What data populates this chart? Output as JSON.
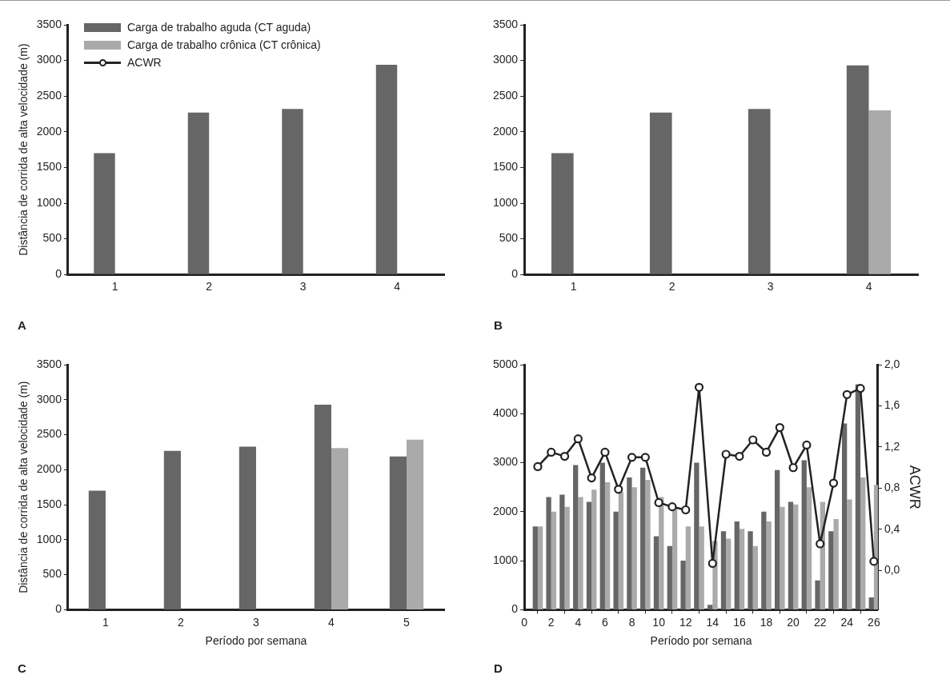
{
  "chart_data": [
    {
      "type": "bar",
      "ylabel": "Distância de corrida de alta velocidade (m)",
      "categories": [
        "1",
        "2",
        "3",
        "4"
      ],
      "ylim": [
        0,
        3500
      ],
      "yticks": [
        0,
        500,
        1000,
        1500,
        2000,
        2500,
        3000,
        3500
      ],
      "grid": false,
      "legend": "top left",
      "annotations": [
        "A"
      ],
      "series": [
        {
          "name": "Carga de trabalho aguda (CT aguda)",
          "color": "#666666",
          "values": [
            1700,
            2270,
            2320,
            2940
          ]
        },
        {
          "name": "Carga de trabalho crônica (CT crônica)",
          "color": "#aaaaaa",
          "values": [
            null,
            null,
            null,
            null
          ]
        },
        {
          "name": "ACWR",
          "type": "line",
          "color": "#222222",
          "marker": "circle",
          "values": [
            null,
            null,
            null,
            null
          ]
        }
      ]
    },
    {
      "type": "bar",
      "categories": [
        "1",
        "2",
        "3",
        "4"
      ],
      "ylim": [
        0,
        3500
      ],
      "yticks": [
        0,
        500,
        1000,
        1500,
        2000,
        2500,
        3000,
        3500
      ],
      "grid": false,
      "annotations": [
        "B"
      ],
      "series": [
        {
          "color": "#666666",
          "values": [
            1700,
            2270,
            2320,
            2930
          ]
        },
        {
          "color": "#aaaaaa",
          "values": [
            null,
            null,
            null,
            2300
          ]
        }
      ]
    },
    {
      "type": "bar",
      "ylabel": "Distância de corrida de alta velocidade (m)",
      "xlabel": "Período por semana",
      "categories": [
        "1",
        "2",
        "3",
        "4",
        "5"
      ],
      "ylim": [
        0,
        3500
      ],
      "yticks": [
        0,
        500,
        1000,
        1500,
        2000,
        2500,
        3000,
        3500
      ],
      "grid": false,
      "annotations": [
        "C"
      ],
      "series": [
        {
          "color": "#666666",
          "values": [
            1700,
            2270,
            2330,
            2930,
            2190
          ]
        },
        {
          "color": "#aaaaaa",
          "values": [
            null,
            null,
            null,
            2310,
            2430
          ]
        }
      ]
    },
    {
      "type": "bar",
      "xlabel": "Período por semana",
      "y2label": "ACWR",
      "x": [
        1,
        2,
        3,
        4,
        5,
        6,
        7,
        8,
        9,
        10,
        11,
        12,
        13,
        14,
        15,
        16,
        17,
        18,
        19,
        20,
        21,
        22,
        23,
        24,
        25,
        26
      ],
      "xlim": [
        0,
        26.3
      ],
      "xticks": [
        0,
        2,
        4,
        6,
        8,
        10,
        12,
        14,
        16,
        18,
        20,
        22,
        24,
        26
      ],
      "ylim": [
        0,
        5000
      ],
      "yticks": [
        0,
        1000,
        2000,
        3000,
        4000,
        5000
      ],
      "y2lim": [
        -0.38,
        2.0
      ],
      "y2ticks": [
        {
          "value": 0,
          "label": "0,0"
        },
        {
          "value": 0.4,
          "label": "0,4"
        },
        {
          "value": 0.8,
          "label": "0,8"
        },
        {
          "value": 1.2,
          "label": "1,2"
        },
        {
          "value": 1.6,
          "label": "1,6"
        },
        {
          "value": 2,
          "label": "2,0"
        }
      ],
      "grid": false,
      "annotations": [
        "D"
      ],
      "series": [
        {
          "color": "#666666",
          "values": [
            1700,
            2300,
            2350,
            2950,
            2200,
            3000,
            2000,
            2700,
            2900,
            1500,
            1300,
            1000,
            3000,
            100,
            1600,
            1800,
            1600,
            2000,
            2850,
            2200,
            3050,
            600,
            1600,
            3800,
            4600,
            250
          ]
        },
        {
          "color": "#aaaaaa",
          "values": [
            1700,
            2000,
            2100,
            2300,
            2450,
            2600,
            2400,
            2500,
            2650,
            2300,
            2050,
            1700,
            1700,
            1400,
            1450,
            1650,
            1300,
            1800,
            2100,
            2150,
            2500,
            2200,
            1850,
            2250,
            2700,
            2550
          ]
        },
        {
          "type": "line",
          "axis": "y2",
          "color": "#222222",
          "marker": "circle",
          "values": [
            1.01,
            1.15,
            1.11,
            1.28,
            0.9,
            1.15,
            0.79,
            1.1,
            1.1,
            0.66,
            0.62,
            0.59,
            1.78,
            0.07,
            1.13,
            1.11,
            1.27,
            1.15,
            1.39,
            1.0,
            1.22,
            0.26,
            0.85,
            1.71,
            1.77,
            0.09
          ]
        }
      ]
    }
  ]
}
